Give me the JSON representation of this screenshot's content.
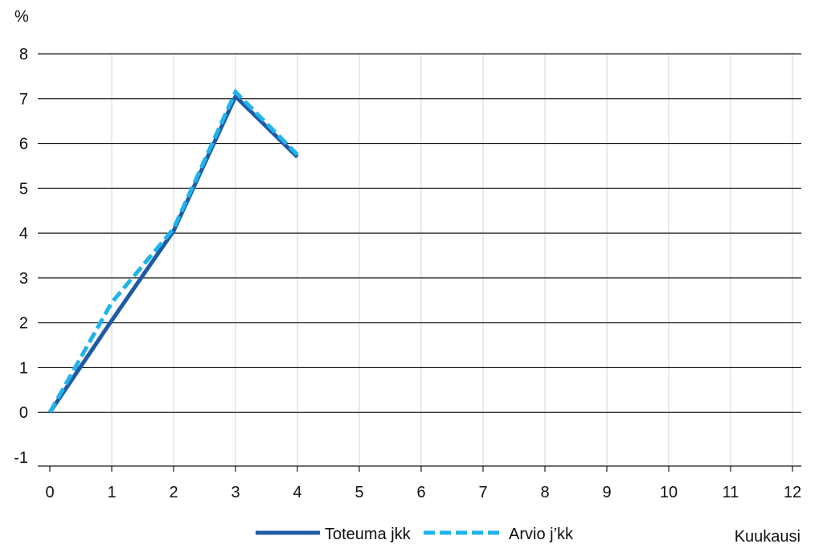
{
  "chart_data": {
    "type": "line",
    "y_unit": "%",
    "xlabel": "Kuukausi",
    "x_ticks": [
      0,
      1,
      2,
      3,
      4,
      5,
      6,
      7,
      8,
      9,
      10,
      11,
      12
    ],
    "y_ticks": [
      -1,
      0,
      1,
      2,
      3,
      4,
      5,
      6,
      7,
      8
    ],
    "xlim": [
      0,
      12
    ],
    "ylim": [
      -1,
      8
    ],
    "grid": {
      "horizontal": true,
      "vertical": true
    },
    "legend_position": "bottom",
    "series": [
      {
        "name": "Toteuma jkk",
        "style": "solid",
        "color": "#1f5aa6",
        "x": [
          0,
          1,
          2,
          3,
          4
        ],
        "y": [
          0,
          2.05,
          4.05,
          7.05,
          5.7
        ]
      },
      {
        "name": "Arvio j’kk",
        "style": "dashed",
        "color": "#1fb4ea",
        "x": [
          0,
          1,
          2,
          3,
          4
        ],
        "y": [
          0,
          2.45,
          4.1,
          7.15,
          5.75
        ]
      }
    ]
  }
}
